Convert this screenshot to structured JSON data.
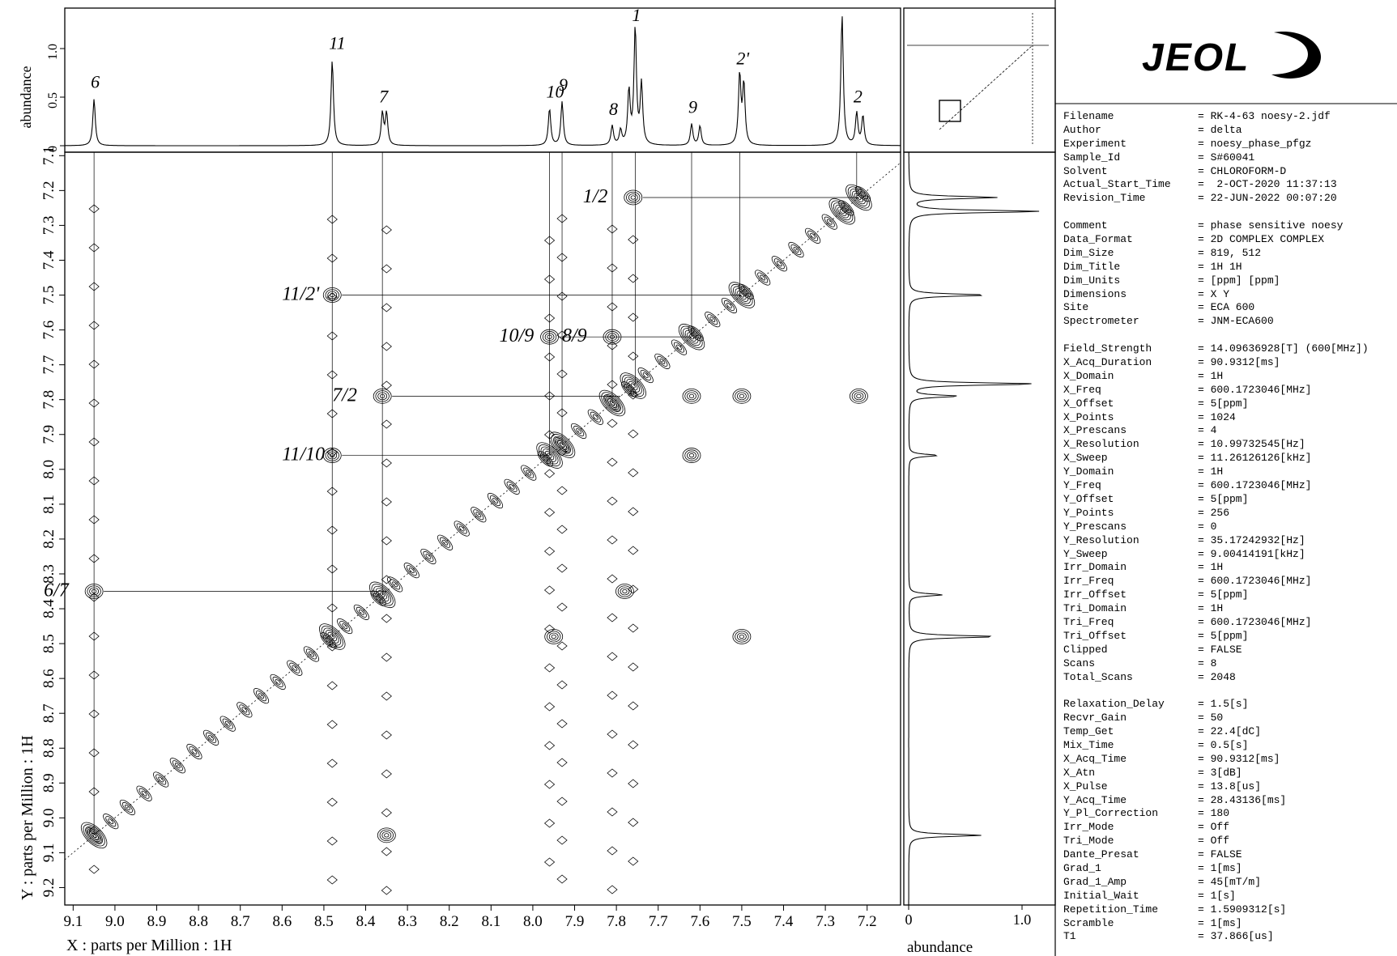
{
  "logo": {
    "text": "JEOL"
  },
  "chart_data": {
    "type": "scatter",
    "subtype": "2D NOESY contour spectrum",
    "xlabel": "X : parts per Million : 1H",
    "ylabel": "Y : parts per Million : 1H",
    "top_axis_label": "abundance",
    "side_axis_label": "abundance",
    "xlim": [
      9.12,
      7.12
    ],
    "ylim": [
      7.09,
      9.25
    ],
    "x_ticks": [
      "9.1",
      "9.0",
      "8.9",
      "8.8",
      "8.7",
      "8.6",
      "8.5",
      "8.4",
      "8.3",
      "8.2",
      "8.1",
      "8.0",
      "7.9",
      "7.8",
      "7.7",
      "7.6",
      "7.5",
      "7.4",
      "7.3",
      "7.2"
    ],
    "y_ticks": [
      "7.1",
      "7.2",
      "7.3",
      "7.4",
      "7.5",
      "7.6",
      "7.7",
      "7.8",
      "7.9",
      "8.0",
      "8.1",
      "8.2",
      "8.3",
      "8.4",
      "8.5",
      "8.6",
      "8.7",
      "8.8",
      "8.9",
      "9.0",
      "9.1",
      "9.2"
    ],
    "top_ticks": [
      "0",
      "0.5",
      "1.0"
    ],
    "side_ticks": [
      "0",
      "1.0"
    ],
    "top_peaks": [
      {
        "x": 9.05,
        "h": 0.48,
        "label": "6"
      },
      {
        "x": 8.48,
        "h": 0.88,
        "label": "11"
      },
      {
        "x": 8.36,
        "h": 0.33,
        "label": "7"
      },
      {
        "x": 8.35,
        "h": 0.33,
        "label": ""
      },
      {
        "x": 7.96,
        "h": 0.38,
        "label": "10"
      },
      {
        "x": 7.93,
        "h": 0.45,
        "label": "9"
      },
      {
        "x": 7.81,
        "h": 0.2,
        "label": "8"
      },
      {
        "x": 7.79,
        "h": 0.15,
        "label": ""
      },
      {
        "x": 7.77,
        "h": 0.55,
        "label": ""
      },
      {
        "x": 7.755,
        "h": 1.2,
        "label": "1"
      },
      {
        "x": 7.74,
        "h": 0.62,
        "label": ""
      },
      {
        "x": 7.62,
        "h": 0.22,
        "label": "9"
      },
      {
        "x": 7.6,
        "h": 0.2,
        "label": ""
      },
      {
        "x": 7.505,
        "h": 0.72,
        "label": "2'"
      },
      {
        "x": 7.495,
        "h": 0.62,
        "label": ""
      },
      {
        "x": 7.26,
        "h": 1.35,
        "label": ""
      },
      {
        "x": 7.225,
        "h": 0.33,
        "label": "2"
      },
      {
        "x": 7.21,
        "h": 0.3,
        "label": ""
      }
    ],
    "side_peaks": [
      {
        "y": 7.22,
        "h": 0.9
      },
      {
        "y": 7.26,
        "h": 1.35
      },
      {
        "y": 7.5,
        "h": 0.8
      },
      {
        "y": 7.755,
        "h": 1.3
      },
      {
        "y": 7.79,
        "h": 0.5
      },
      {
        "y": 7.96,
        "h": 0.3
      },
      {
        "y": 8.36,
        "h": 0.35
      },
      {
        "y": 8.48,
        "h": 0.9
      },
      {
        "y": 9.05,
        "h": 0.75
      }
    ],
    "cross_peaks": [
      {
        "x": 8.48,
        "y": 7.5,
        "label": "11/2'"
      },
      {
        "x": 7.96,
        "y": 7.62,
        "label": "10/9"
      },
      {
        "x": 7.81,
        "y": 7.62,
        "label": "8/9"
      },
      {
        "x": 8.36,
        "y": 7.79,
        "label": "7/2"
      },
      {
        "x": 8.48,
        "y": 7.96,
        "label": "11/10"
      },
      {
        "x": 9.05,
        "y": 8.35,
        "label": "6/7"
      },
      {
        "x": 7.76,
        "y": 7.22,
        "label": "1/2"
      },
      {
        "x": 7.22,
        "y": 7.79,
        "label": ""
      },
      {
        "x": 7.62,
        "y": 7.96,
        "label": ""
      },
      {
        "x": 7.78,
        "y": 8.35,
        "label": ""
      },
      {
        "x": 7.95,
        "y": 8.48,
        "label": ""
      },
      {
        "x": 7.5,
        "y": 8.48,
        "label": ""
      },
      {
        "x": 8.35,
        "y": 9.05,
        "label": ""
      },
      {
        "x": 7.62,
        "y": 7.79,
        "label": ""
      },
      {
        "x": 7.5,
        "y": 7.79,
        "label": ""
      }
    ],
    "diagonal_peaks": [
      9.05,
      8.48,
      8.36,
      7.96,
      7.93,
      7.81,
      7.76,
      7.62,
      7.5,
      7.26,
      7.22
    ]
  },
  "params": [
    {
      "key": "Filename",
      "value": "= RK-4-63 noesy-2.jdf"
    },
    {
      "key": "Author",
      "value": "= delta"
    },
    {
      "key": "Experiment",
      "value": "= noesy_phase_pfgz"
    },
    {
      "key": "Sample_Id",
      "value": "= S#60041"
    },
    {
      "key": "Solvent",
      "value": "= CHLOROFORM-D"
    },
    {
      "key": "Actual_Start_Time",
      "value": "=  2-OCT-2020 11:37:13"
    },
    {
      "key": "Revision_Time",
      "value": "= 22-JUN-2022 00:07:20"
    },
    {
      "key": "",
      "value": ""
    },
    {
      "key": "Comment",
      "value": "= phase sensitive noesy"
    },
    {
      "key": "Data_Format",
      "value": "= 2D COMPLEX COMPLEX"
    },
    {
      "key": "Dim_Size",
      "value": "= 819, 512"
    },
    {
      "key": "Dim_Title",
      "value": "= 1H 1H"
    },
    {
      "key": "Dim_Units",
      "value": "= [ppm] [ppm]"
    },
    {
      "key": "Dimensions",
      "value": "= X Y"
    },
    {
      "key": "Site",
      "value": "= ECA 600"
    },
    {
      "key": "Spectrometer",
      "value": "= JNM-ECA600"
    },
    {
      "key": "",
      "value": ""
    },
    {
      "key": "Field_Strength",
      "value": "= 14.09636928[T] (600[MHz])"
    },
    {
      "key": "X_Acq_Duration",
      "value": "= 90.9312[ms]"
    },
    {
      "key": "X_Domain",
      "value": "= 1H"
    },
    {
      "key": "X_Freq",
      "value": "= 600.1723046[MHz]"
    },
    {
      "key": "X_Offset",
      "value": "= 5[ppm]"
    },
    {
      "key": "X_Points",
      "value": "= 1024"
    },
    {
      "key": "X_Prescans",
      "value": "= 4"
    },
    {
      "key": "X_Resolution",
      "value": "= 10.99732545[Hz]"
    },
    {
      "key": "X_Sweep",
      "value": "= 11.26126126[kHz]"
    },
    {
      "key": "Y_Domain",
      "value": "= 1H"
    },
    {
      "key": "Y_Freq",
      "value": "= 600.1723046[MHz]"
    },
    {
      "key": "Y_Offset",
      "value": "= 5[ppm]"
    },
    {
      "key": "Y_Points",
      "value": "= 256"
    },
    {
      "key": "Y_Prescans",
      "value": "= 0"
    },
    {
      "key": "Y_Resolution",
      "value": "= 35.17242932[Hz]"
    },
    {
      "key": "Y_Sweep",
      "value": "= 9.00414191[kHz]"
    },
    {
      "key": "Irr_Domain",
      "value": "= 1H"
    },
    {
      "key": "Irr_Freq",
      "value": "= 600.1723046[MHz]"
    },
    {
      "key": "Irr_Offset",
      "value": "= 5[ppm]"
    },
    {
      "key": "Tri_Domain",
      "value": "= 1H"
    },
    {
      "key": "Tri_Freq",
      "value": "= 600.1723046[MHz]"
    },
    {
      "key": "Tri_Offset",
      "value": "= 5[ppm]"
    },
    {
      "key": "Clipped",
      "value": "= FALSE"
    },
    {
      "key": "Scans",
      "value": "= 8"
    },
    {
      "key": "Total_Scans",
      "value": "= 2048"
    },
    {
      "key": "",
      "value": ""
    },
    {
      "key": "Relaxation_Delay",
      "value": "= 1.5[s]"
    },
    {
      "key": "Recvr_Gain",
      "value": "= 50"
    },
    {
      "key": "Temp_Get",
      "value": "= 22.4[dC]"
    },
    {
      "key": "Mix_Time",
      "value": "= 0.5[s]"
    },
    {
      "key": "X_Acq_Time",
      "value": "= 90.9312[ms]"
    },
    {
      "key": "X_Atn",
      "value": "= 3[dB]"
    },
    {
      "key": "X_Pulse",
      "value": "= 13.8[us]"
    },
    {
      "key": "Y_Acq_Time",
      "value": "= 28.43136[ms]"
    },
    {
      "key": "Y_Pl_Correction",
      "value": "= 180"
    },
    {
      "key": "Irr_Mode",
      "value": "= Off"
    },
    {
      "key": "Tri_Mode",
      "value": "= Off"
    },
    {
      "key": "Dante_Presat",
      "value": "= FALSE"
    },
    {
      "key": "Grad_1",
      "value": "= 1[ms]"
    },
    {
      "key": "Grad_1_Amp",
      "value": "= 45[mT/m]"
    },
    {
      "key": "Initial_Wait",
      "value": "= 1[s]"
    },
    {
      "key": "Repetition_Time",
      "value": "= 1.5909312[s]"
    },
    {
      "key": "Scramble",
      "value": "= 1[ms]"
    },
    {
      "key": "T1",
      "value": "= 37.866[us]"
    }
  ]
}
